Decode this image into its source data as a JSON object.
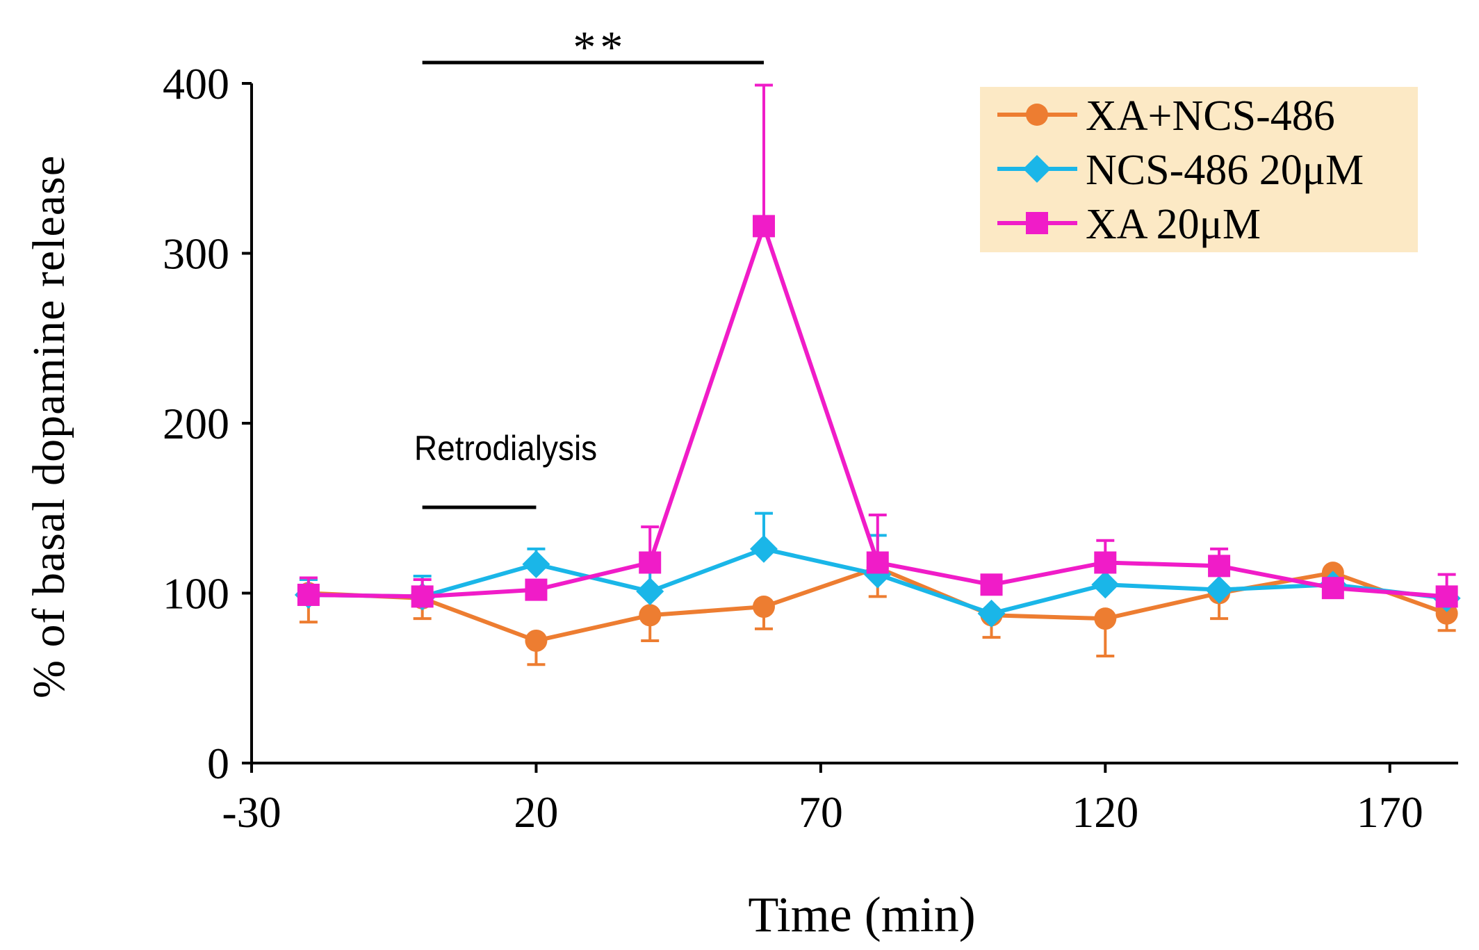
{
  "chart_data": {
    "type": "line",
    "title": "",
    "xlabel": "Time (min)",
    "ylabel": "% of basal dopamine release",
    "xlim": [
      -30,
      182
    ],
    "ylim": [
      0,
      400
    ],
    "xticks": [
      -30,
      20,
      70,
      120,
      170
    ],
    "yticks": [
      0,
      100,
      200,
      300,
      400
    ],
    "grid": false,
    "legend_position": "top-right",
    "x": [
      -20,
      0,
      20,
      40,
      60,
      80,
      100,
      120,
      140,
      160,
      180
    ],
    "series": [
      {
        "name": "XA+NCS-486",
        "color": "#ED7D31",
        "marker": "circle",
        "values": [
          100,
          97,
          72,
          87,
          92,
          115,
          87,
          85,
          100,
          112,
          88
        ],
        "error_plus": [
          0,
          0,
          0,
          0,
          0,
          0,
          0,
          0,
          0,
          0,
          0
        ],
        "error_minus": [
          17,
          12,
          14,
          15,
          13,
          17,
          13,
          22,
          15,
          0,
          10
        ]
      },
      {
        "name": "NCS-486 20μM",
        "color": "#1AB6E8",
        "marker": "diamond",
        "values": [
          99,
          98,
          117,
          101,
          126,
          111,
          88,
          105,
          102,
          105,
          97
        ],
        "error_plus": [
          9,
          12,
          9,
          13,
          21,
          23,
          0,
          0,
          0,
          0,
          0
        ],
        "error_minus": [
          0,
          0,
          0,
          0,
          0,
          0,
          0,
          0,
          0,
          0,
          0
        ]
      },
      {
        "name": "XA 20μM",
        "color": "#F01CC8",
        "marker": "square",
        "values": [
          99,
          98,
          102,
          118,
          316,
          118,
          105,
          118,
          116,
          103,
          98
        ],
        "error_plus": [
          10,
          10,
          0,
          21,
          83,
          28,
          0,
          13,
          10,
          0,
          13
        ],
        "error_minus": [
          0,
          0,
          0,
          0,
          0,
          0,
          0,
          0,
          0,
          0,
          0
        ]
      }
    ],
    "annotations": {
      "significance": {
        "text": "**",
        "x_start": 0,
        "x_end": 60
      },
      "treatment": {
        "text": "Retrodialysis",
        "x_start": 0,
        "x_end": 20
      }
    }
  }
}
